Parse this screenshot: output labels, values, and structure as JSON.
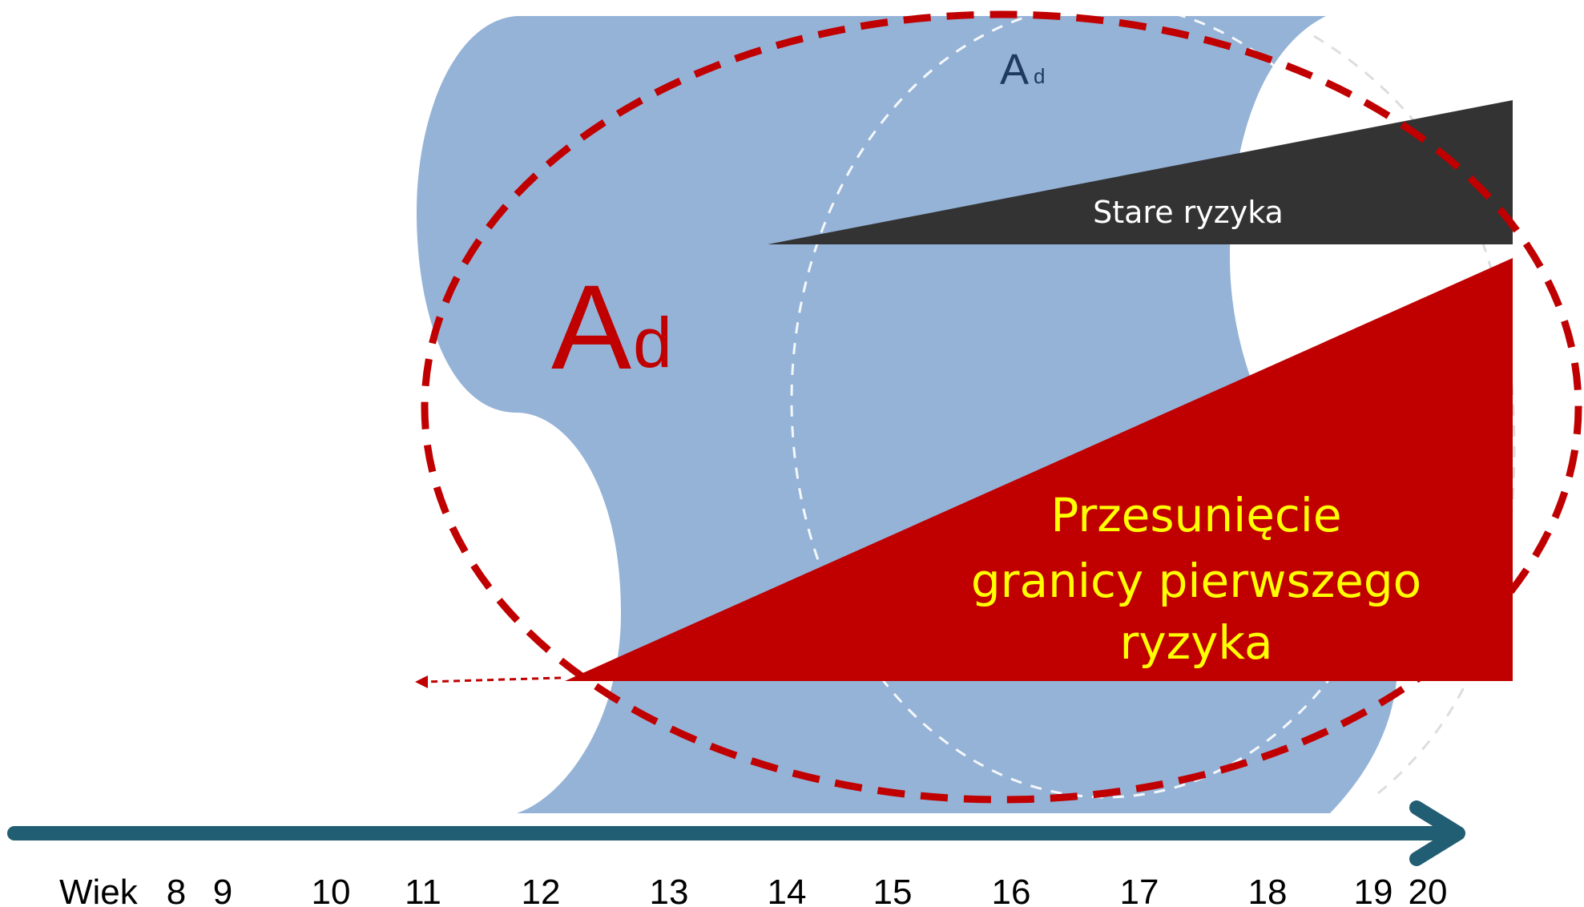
{
  "labels": {
    "top_a_main": "A",
    "top_a_sub": "d",
    "big_a_main": "A",
    "big_a_sub": "d",
    "old_risks": "Stare ryzyka",
    "shift_line_1": "Przesunięcie",
    "shift_line_2": "granicy pierwszego",
    "shift_line_3": "ryzyka"
  },
  "axis": {
    "title": "Wiek",
    "ticks": [
      "8",
      "9",
      "10",
      "11",
      "12",
      "13",
      "14",
      "15",
      "16",
      "17",
      "18",
      "19",
      "20"
    ]
  },
  "colors": {
    "tube": "#95b3d7",
    "old_risk_wedge": "#333333",
    "shift_wedge": "#c00000",
    "dashed_ellipse": "#c00000",
    "axis_arrow": "#215e73",
    "shift_text": "#ffff00",
    "old_risk_text": "#ffffff"
  }
}
